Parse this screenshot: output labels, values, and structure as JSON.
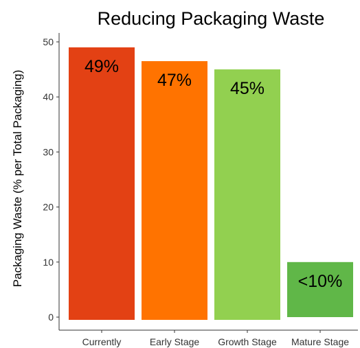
{
  "chart_data": {
    "type": "bar",
    "title": "Reducing Packaging Waste",
    "xlabel": "",
    "ylabel": "Packaging Waste (% per Total Packaging)",
    "categories": [
      "Currently",
      "Early Stage",
      "Growth Stage",
      "Mature Stage"
    ],
    "values": [
      49,
      46.5,
      45,
      10
    ],
    "data_labels": [
      "49%",
      "47%",
      "45%",
      "<10%"
    ],
    "colors": [
      "#E34114",
      "#FF7300",
      "#92D050",
      "#60B748"
    ],
    "ylim": [
      0,
      50
    ],
    "yticks": [
      0,
      10,
      20,
      30,
      40,
      50
    ],
    "ytick_labels": [
      "0",
      "10",
      "20",
      "30",
      "40",
      "50"
    ],
    "grid": false,
    "legend": "none"
  }
}
